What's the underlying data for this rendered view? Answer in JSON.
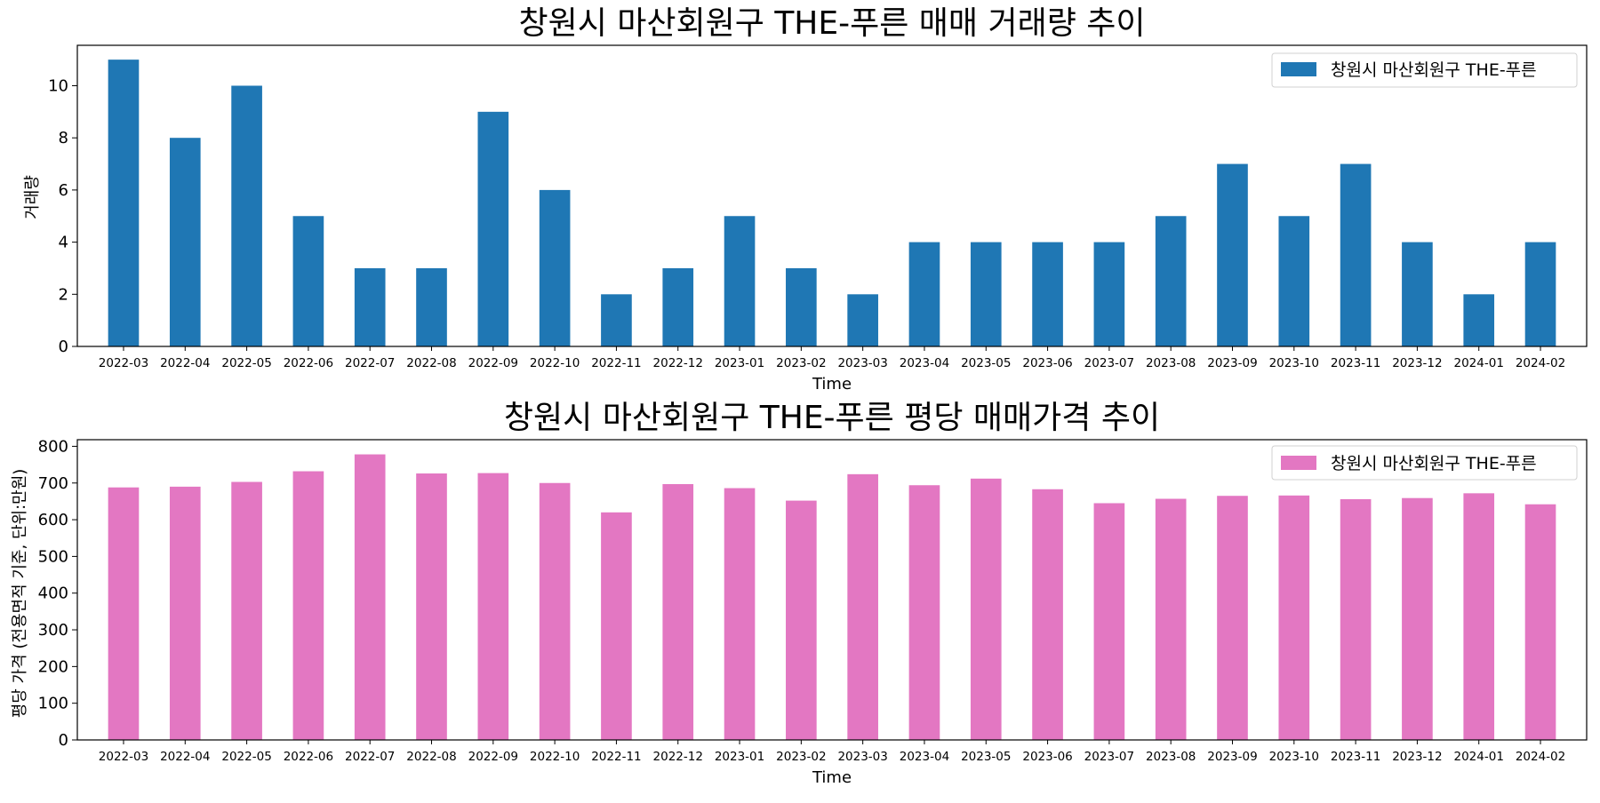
{
  "chart_data": [
    {
      "type": "bar",
      "title": "창원시 마산회원구 THE-푸른 매매 거래량 추이",
      "xlabel": "Time",
      "ylabel": "거래량",
      "categories": [
        "2022-03",
        "2022-04",
        "2022-05",
        "2022-06",
        "2022-07",
        "2022-08",
        "2022-09",
        "2022-10",
        "2022-11",
        "2022-12",
        "2023-01",
        "2023-02",
        "2023-03",
        "2023-04",
        "2023-05",
        "2023-06",
        "2023-07",
        "2023-08",
        "2023-09",
        "2023-10",
        "2023-11",
        "2023-12",
        "2024-01",
        "2024-02"
      ],
      "series": [
        {
          "name": "창원시 마산회원구 THE-푸른",
          "color": "#1f77b4",
          "values": [
            11,
            8,
            10,
            5,
            3,
            3,
            9,
            6,
            2,
            3,
            5,
            3,
            2,
            4,
            4,
            4,
            4,
            5,
            7,
            5,
            7,
            4,
            2,
            4
          ]
        }
      ],
      "ylim": [
        0,
        11.55
      ],
      "yticks": [
        0,
        2,
        4,
        6,
        8,
        10
      ],
      "grid": false,
      "legend_position": "top-right"
    },
    {
      "type": "bar",
      "title": "창원시 마산회원구 THE-푸른 평당 매매가격 추이",
      "xlabel": "Time",
      "ylabel": "평당 가격 (전용면적 기준, 단위:만원)",
      "categories": [
        "2022-03",
        "2022-04",
        "2022-05",
        "2022-06",
        "2022-07",
        "2022-08",
        "2022-09",
        "2022-10",
        "2022-11",
        "2022-12",
        "2023-01",
        "2023-02",
        "2023-03",
        "2023-04",
        "2023-05",
        "2023-06",
        "2023-07",
        "2023-08",
        "2023-09",
        "2023-10",
        "2023-11",
        "2023-12",
        "2024-01",
        "2024-02"
      ],
      "series": [
        {
          "name": "창원시 마산회원구 THE-푸른",
          "color": "#e377c2",
          "values": [
            688,
            690,
            703,
            732,
            778,
            726,
            727,
            700,
            620,
            697,
            686,
            652,
            724,
            694,
            712,
            683,
            645,
            657,
            665,
            666,
            656,
            659,
            672,
            642
          ]
        }
      ],
      "ylim": [
        0,
        818
      ],
      "yticks": [
        0,
        100,
        200,
        300,
        400,
        500,
        600,
        700,
        800
      ],
      "grid": false,
      "legend_position": "top-right"
    }
  ]
}
